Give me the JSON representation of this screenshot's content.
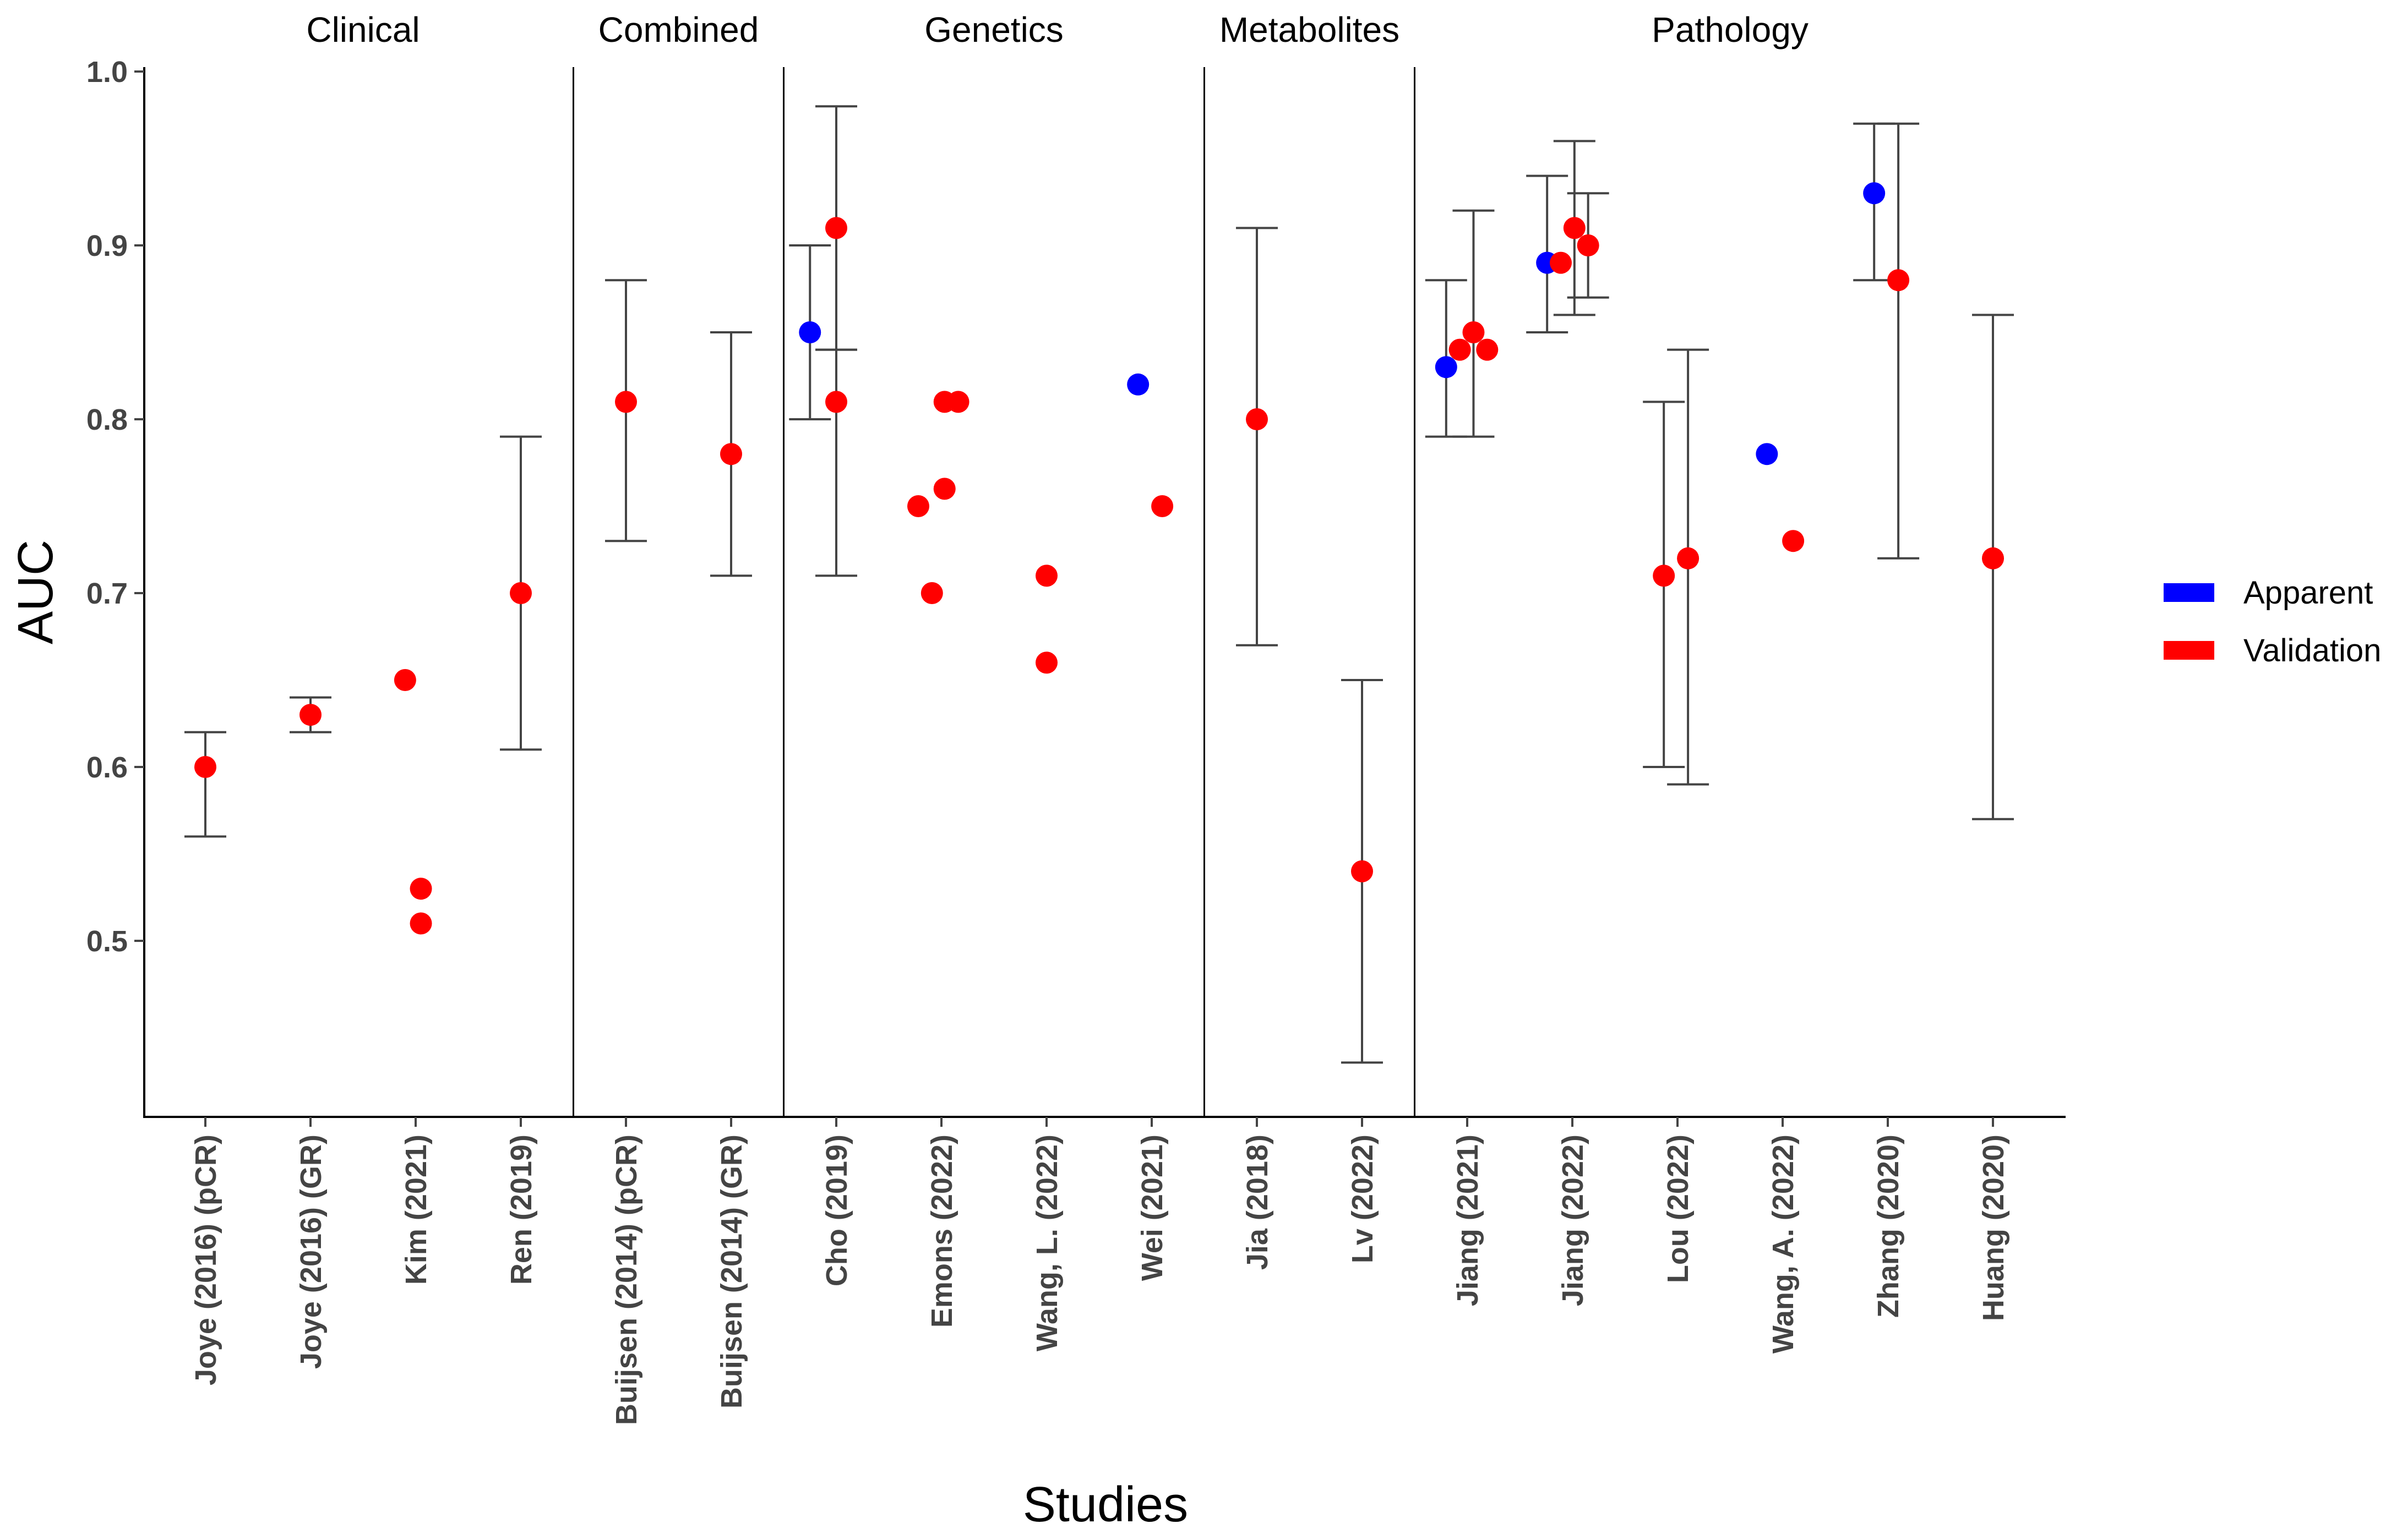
{
  "chart_data": {
    "type": "scatter",
    "xlabel": "Studies",
    "ylabel": "AUC",
    "ylim": [
      0.4,
      1.0
    ],
    "yticks": [
      0.5,
      0.6,
      0.7,
      0.8,
      0.9,
      1.0
    ],
    "ytick_labels": [
      "0.5",
      "0.6",
      "0.7",
      "0.8",
      "0.9",
      "1.0"
    ],
    "categories": [
      "Joye (2016) (pCR)",
      "Joye (2016) (GR)",
      "Kim (2021)",
      "Ren (2019)",
      "Buijsen (2014) (pCR)",
      "Buijsen (2014) (GR)",
      "Cho (2019)",
      "Emons (2022)",
      "Wang, L. (2022)",
      "Wei (2021)",
      "Jia (2018)",
      "Lv (2022)",
      "Jiang (2021)",
      "Jiang (2022)",
      "Lou (2022)",
      "Wang, A. (2022)",
      "Zhang (2020)",
      "Huang (2020)"
    ],
    "facets": [
      {
        "name": "Clinical",
        "start": 0,
        "end": 3
      },
      {
        "name": "Combined",
        "start": 4,
        "end": 5
      },
      {
        "name": "Genetics",
        "start": 6,
        "end": 9
      },
      {
        "name": "Metabolites",
        "start": 10,
        "end": 11
      },
      {
        "name": "Pathology",
        "start": 12,
        "end": 17
      }
    ],
    "legend": {
      "position": "right",
      "entries": [
        {
          "name": "Apparent",
          "color": "#0000ff"
        },
        {
          "name": "Validation",
          "color": "#ff0000"
        }
      ]
    },
    "points": [
      {
        "cat": 0,
        "dx": 0,
        "auc": 0.6,
        "type": "Validation",
        "lo": 0.56,
        "hi": 0.62
      },
      {
        "cat": 1,
        "dx": 0,
        "auc": 0.63,
        "type": "Validation",
        "lo": 0.62,
        "hi": 0.64
      },
      {
        "cat": 2,
        "dx": -0.1,
        "auc": 0.65,
        "type": "Validation"
      },
      {
        "cat": 2,
        "dx": 0.05,
        "auc": 0.53,
        "type": "Validation"
      },
      {
        "cat": 2,
        "dx": 0.05,
        "auc": 0.51,
        "type": "Validation"
      },
      {
        "cat": 3,
        "dx": 0,
        "auc": 0.7,
        "type": "Validation",
        "lo": 0.61,
        "hi": 0.79
      },
      {
        "cat": 4,
        "dx": 0,
        "auc": 0.81,
        "type": "Validation",
        "lo": 0.73,
        "hi": 0.88
      },
      {
        "cat": 5,
        "dx": 0,
        "auc": 0.78,
        "type": "Validation",
        "lo": 0.71,
        "hi": 0.85
      },
      {
        "cat": 6,
        "dx": -0.25,
        "auc": 0.85,
        "type": "Apparent",
        "lo": 0.8,
        "hi": 0.9
      },
      {
        "cat": 6,
        "dx": 0,
        "auc": 0.91,
        "type": "Validation",
        "lo": 0.84,
        "hi": 0.98
      },
      {
        "cat": 6,
        "dx": 0,
        "auc": 0.81,
        "type": "Validation",
        "lo": 0.71,
        "hi": 0.84
      },
      {
        "cat": 7,
        "dx": -0.22,
        "auc": 0.75,
        "type": "Validation"
      },
      {
        "cat": 7,
        "dx": -0.09,
        "auc": 0.7,
        "type": "Validation"
      },
      {
        "cat": 7,
        "dx": 0.03,
        "auc": 0.76,
        "type": "Validation"
      },
      {
        "cat": 7,
        "dx": 0.03,
        "auc": 0.81,
        "type": "Validation"
      },
      {
        "cat": 7,
        "dx": 0.16,
        "auc": 0.81,
        "type": "Validation"
      },
      {
        "cat": 8,
        "dx": 0,
        "auc": 0.71,
        "type": "Validation"
      },
      {
        "cat": 8,
        "dx": 0,
        "auc": 0.66,
        "type": "Validation"
      },
      {
        "cat": 9,
        "dx": -0.13,
        "auc": 0.82,
        "type": "Apparent"
      },
      {
        "cat": 9,
        "dx": 0.1,
        "auc": 0.75,
        "type": "Validation"
      },
      {
        "cat": 10,
        "dx": 0,
        "auc": 0.8,
        "type": "Validation",
        "lo": 0.67,
        "hi": 0.91
      },
      {
        "cat": 11,
        "dx": 0,
        "auc": 0.54,
        "type": "Validation",
        "lo": 0.43,
        "hi": 0.65
      },
      {
        "cat": 12,
        "dx": -0.2,
        "auc": 0.83,
        "type": "Apparent",
        "lo": 0.79,
        "hi": 0.88
      },
      {
        "cat": 12,
        "dx": -0.07,
        "auc": 0.84,
        "type": "Validation"
      },
      {
        "cat": 12,
        "dx": 0.06,
        "auc": 0.85,
        "type": "Validation",
        "lo": 0.79,
        "hi": 0.92
      },
      {
        "cat": 12,
        "dx": 0.19,
        "auc": 0.84,
        "type": "Validation"
      },
      {
        "cat": 13,
        "dx": -0.24,
        "auc": 0.89,
        "type": "Apparent",
        "lo": 0.85,
        "hi": 0.94
      },
      {
        "cat": 13,
        "dx": -0.11,
        "auc": 0.89,
        "type": "Validation"
      },
      {
        "cat": 13,
        "dx": 0.02,
        "auc": 0.91,
        "type": "Validation",
        "lo": 0.86,
        "hi": 0.96
      },
      {
        "cat": 13,
        "dx": 0.15,
        "auc": 0.9,
        "type": "Validation",
        "lo": 0.87,
        "hi": 0.93
      },
      {
        "cat": 14,
        "dx": -0.13,
        "auc": 0.71,
        "type": "Validation",
        "lo": 0.6,
        "hi": 0.81
      },
      {
        "cat": 14,
        "dx": 0.1,
        "auc": 0.72,
        "type": "Validation",
        "lo": 0.59,
        "hi": 0.84
      },
      {
        "cat": 15,
        "dx": -0.15,
        "auc": 0.78,
        "type": "Apparent"
      },
      {
        "cat": 15,
        "dx": 0.1,
        "auc": 0.73,
        "type": "Validation"
      },
      {
        "cat": 16,
        "dx": -0.13,
        "auc": 0.93,
        "type": "Apparent",
        "lo": 0.88,
        "hi": 0.97
      },
      {
        "cat": 16,
        "dx": 0.1,
        "auc": 0.88,
        "type": "Validation",
        "lo": 0.72,
        "hi": 0.97
      },
      {
        "cat": 17,
        "dx": 0,
        "auc": 0.72,
        "type": "Validation",
        "lo": 0.57,
        "hi": 0.86
      }
    ]
  }
}
